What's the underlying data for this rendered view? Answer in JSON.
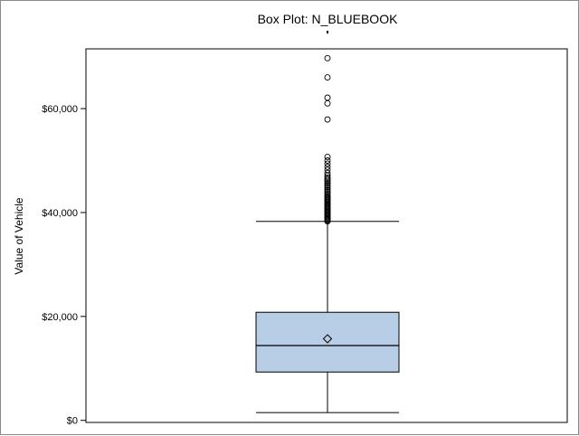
{
  "chart_data": {
    "type": "box",
    "title": "Box Plot: N_BLUEBOOK",
    "ylabel": "Value of Vehicle",
    "xlabel": "",
    "ylim": [
      -400,
      71500
    ],
    "yticks": [
      {
        "value": 0,
        "label": "$0"
      },
      {
        "value": 20000,
        "label": "$20,000"
      },
      {
        "value": 40000,
        "label": "$40,000"
      },
      {
        "value": 60000,
        "label": "$60,000"
      }
    ],
    "box": {
      "whisker_low": 1500,
      "q1": 9300,
      "median": 14400,
      "mean": 15700,
      "q3": 20800,
      "whisker_high": 38300
    },
    "outliers": [
      38300,
      38500,
      38700,
      38900,
      39100,
      39300,
      39500,
      39700,
      39900,
      40100,
      40300,
      40500,
      40700,
      40900,
      41100,
      41300,
      41500,
      41700,
      41900,
      42100,
      42300,
      42500,
      42700,
      42900,
      43100,
      43400,
      43700,
      44000,
      44300,
      44600,
      44900,
      45200,
      45500,
      45800,
      46100,
      46400,
      46700,
      47100,
      47600,
      48200,
      48800,
      49400,
      50000,
      50700,
      57900,
      61000,
      62100,
      66000,
      69700
    ],
    "colors": {
      "box_fill": "#b8cde6",
      "box_stroke": "#000000",
      "plot_border": "#000000",
      "frame_border": "#8a8a8a"
    },
    "grid": false,
    "legend": "none"
  }
}
